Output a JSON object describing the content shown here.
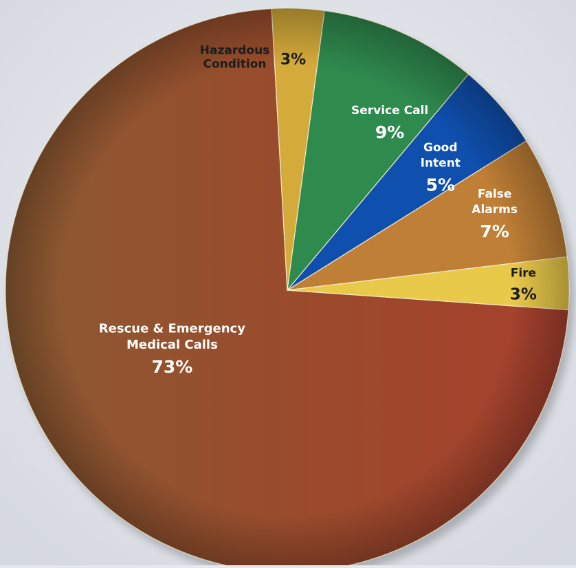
{
  "chart_data": {
    "type": "pie",
    "title": "",
    "slices": [
      {
        "lines": [
          "Rescue & Emergency",
          "Medical Calls"
        ],
        "pct_label": "73%",
        "value": 73,
        "color": "#9a4a2c"
      },
      {
        "lines": [
          "Hazardous",
          "Condition"
        ],
        "pct_label": "3%",
        "value": 3,
        "color": "#d4aa3a"
      },
      {
        "lines": [
          "Service Call"
        ],
        "pct_label": "9%",
        "value": 9,
        "color": "#2f8a4e"
      },
      {
        "lines": [
          "Good",
          "Intent"
        ],
        "pct_label": "5%",
        "value": 5,
        "color": "#0f4fae"
      },
      {
        "lines": [
          "False",
          "Alarms"
        ],
        "pct_label": "7%",
        "value": 7,
        "color": "#c07f36"
      },
      {
        "lines": [
          "Fire"
        ],
        "pct_label": "3%",
        "value": 3,
        "color": "#e9c94a"
      }
    ]
  }
}
